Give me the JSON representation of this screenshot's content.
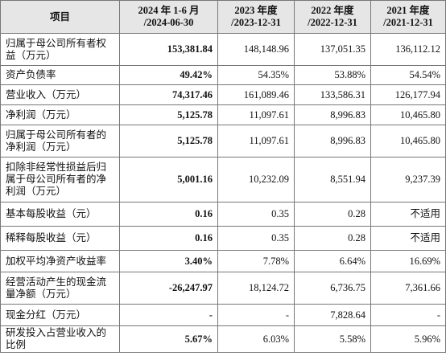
{
  "table": {
    "header": [
      [
        "项目"
      ],
      [
        "2024 年 1-6 月",
        "/2024-06-30"
      ],
      [
        "2023 年度",
        "/2023-12-31"
      ],
      [
        "2022 年度",
        "/2022-12-31"
      ],
      [
        "2021 年度",
        "/2021-12-31"
      ]
    ],
    "rows": [
      [
        "归属于母公司所有者权益（万元）",
        "153,381.84",
        "148,148.96",
        "137,051.35",
        "136,112.12"
      ],
      [
        "资产负债率",
        "49.42%",
        "54.35%",
        "53.88%",
        "54.54%"
      ],
      [
        "营业收入（万元）",
        "74,317.46",
        "161,089.46",
        "133,586.31",
        "126,177.94"
      ],
      [
        "净利润（万元）",
        "5,125.78",
        "11,097.61",
        "8,996.83",
        "10,465.80"
      ],
      [
        "归属于母公司所有者的净利润（万元）",
        "5,125.78",
        "11,097.61",
        "8,996.83",
        "10,465.80"
      ],
      [
        "扣除非经常性损益后归属于母公司所有者的净利润（万元）",
        "5,001.16",
        "10,232.09",
        "8,551.94",
        "9,237.39"
      ],
      [
        "基本每股收益（元）",
        "0.16",
        "0.35",
        "0.28",
        "不适用"
      ],
      [
        "稀释每股收益（元）",
        "0.16",
        "0.35",
        "0.28",
        "不适用"
      ],
      [
        "加权平均净资产收益率",
        "3.40%",
        "7.78%",
        "6.64%",
        "16.69%"
      ],
      [
        "经营活动产生的现金流量净额（万元）",
        "-26,247.97",
        "18,124.72",
        "6,736.75",
        "7,361.66"
      ],
      [
        "现金分红（万元）",
        "-",
        "-",
        "7,828.64",
        "-"
      ],
      [
        "研发投入占营业收入的比例",
        "5.67%",
        "6.03%",
        "5.58%",
        "5.96%"
      ]
    ]
  }
}
